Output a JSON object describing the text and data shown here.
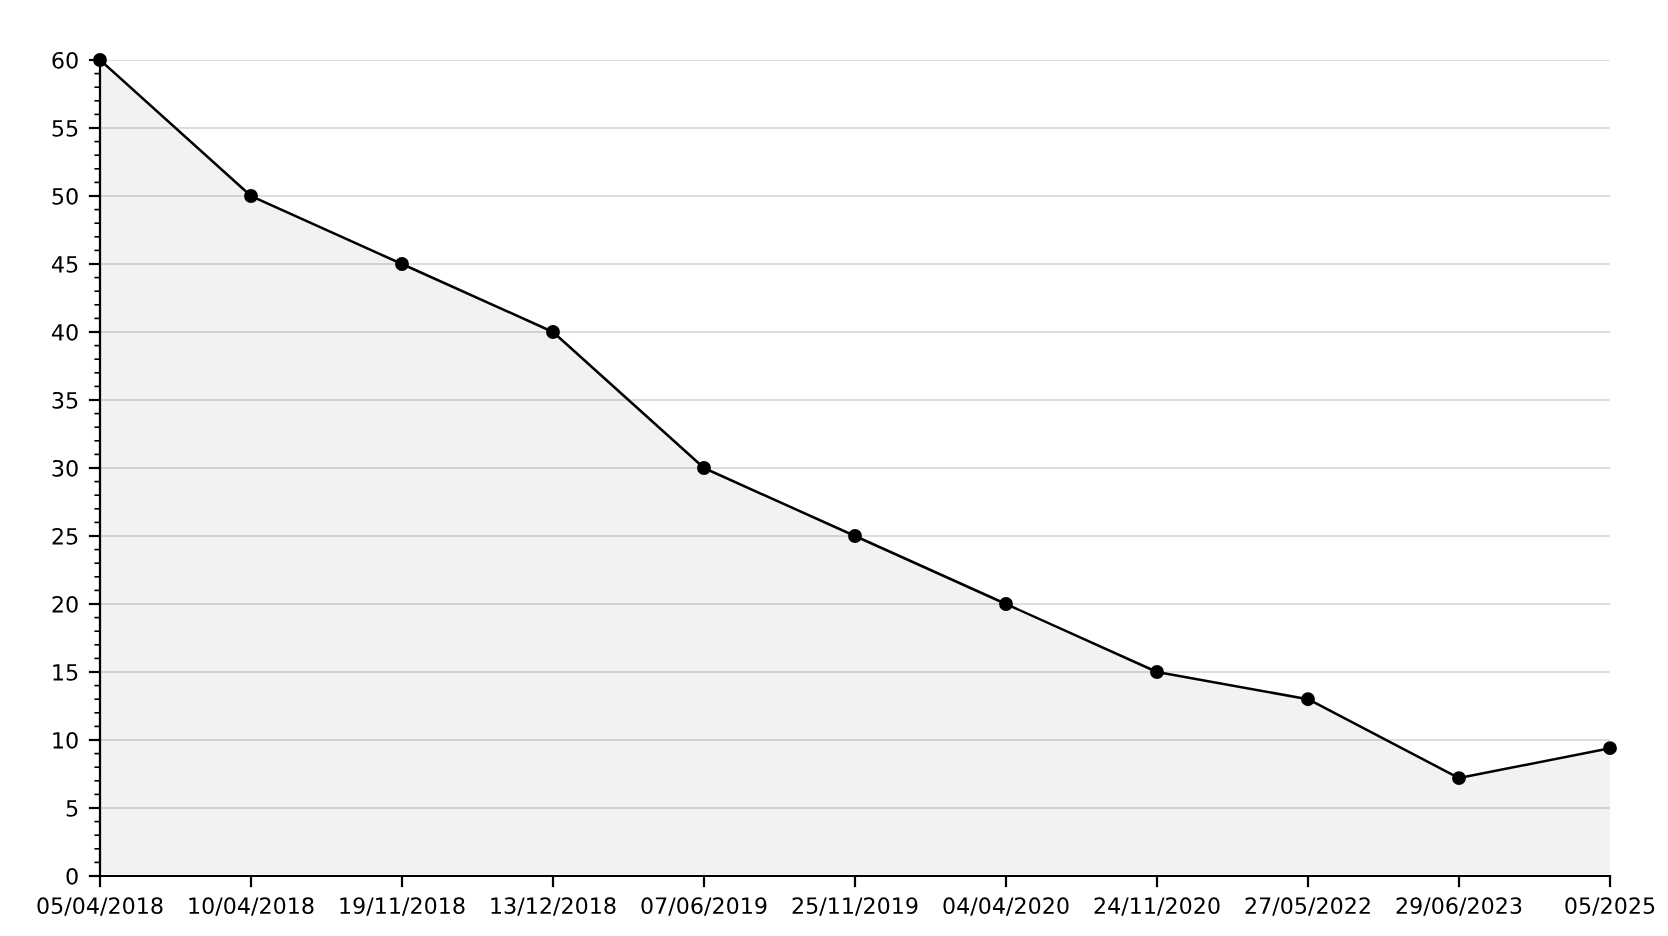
{
  "chart_data": {
    "type": "area",
    "categories": [
      "05/04/2018",
      "10/04/2018",
      "19/11/2018",
      "13/12/2018",
      "07/06/2019",
      "25/11/2019",
      "04/04/2020",
      "24/11/2020",
      "27/05/2022",
      "29/06/2023",
      "05/2025"
    ],
    "series": [
      {
        "color": "#000000",
        "values": [
          60,
          50,
          45,
          40,
          30,
          25,
          20,
          15,
          13,
          7.2,
          9.4
        ]
      }
    ],
    "ylim": [
      0,
      60
    ],
    "yticks": [
      0,
      5,
      10,
      15,
      20,
      25,
      30,
      35,
      40,
      45,
      50,
      55,
      60
    ],
    "grid": "y",
    "marker": "circle",
    "line_style": "solid",
    "legend": false
  }
}
